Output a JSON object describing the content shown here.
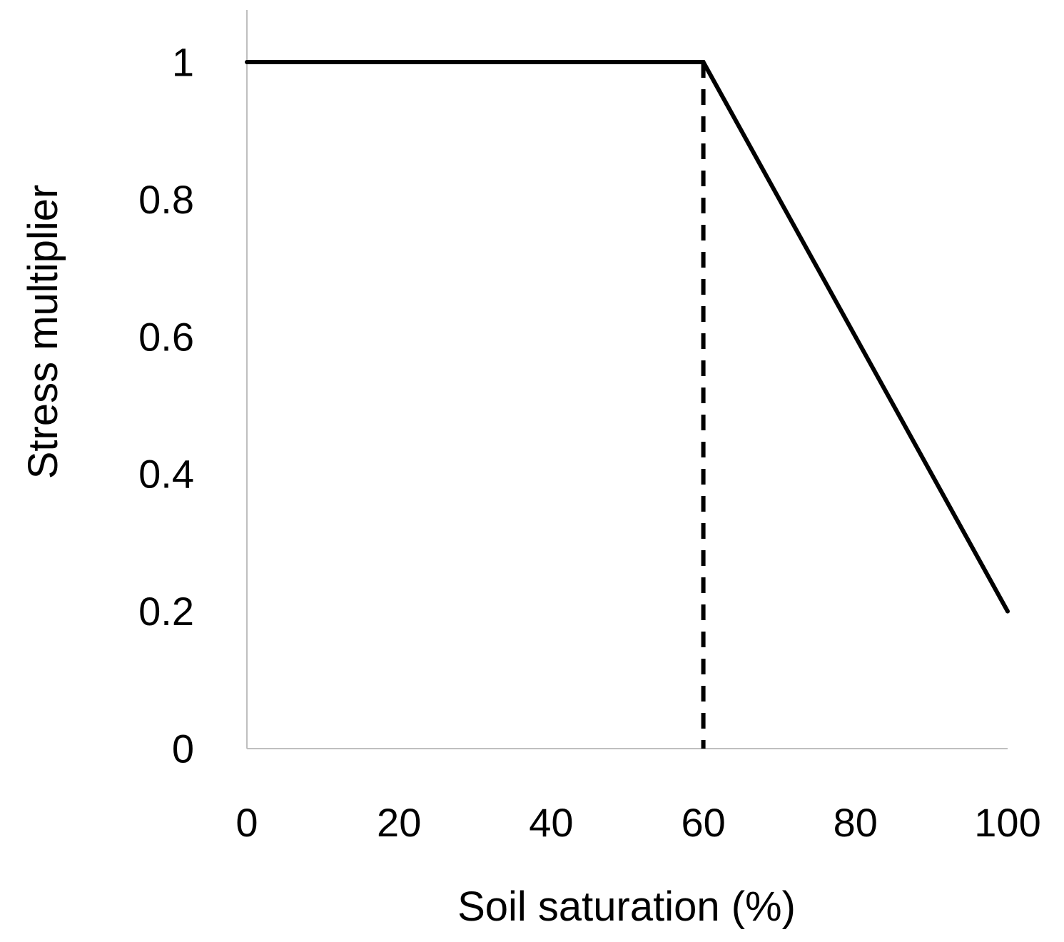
{
  "chart_data": {
    "type": "line",
    "title": "",
    "xlabel": "Soil saturation (%)",
    "ylabel": "Stress multiplier",
    "xlim": [
      0,
      100
    ],
    "ylim": [
      0,
      1
    ],
    "x_ticks": [
      0,
      20,
      40,
      60,
      80,
      100
    ],
    "x_tick_labels": [
      "0",
      "20",
      "40",
      "60",
      "80",
      "100"
    ],
    "y_ticks": [
      0,
      0.2,
      0.4,
      0.6,
      0.8,
      1
    ],
    "y_tick_labels": [
      "0",
      "0.2",
      "0.4",
      "0.6",
      "0.8",
      "1"
    ],
    "grid": false,
    "legend": "none",
    "series": [
      {
        "x": [
          0,
          60,
          100
        ],
        "y": [
          1,
          1,
          0.2
        ],
        "color": "#000000",
        "style": "solid"
      }
    ],
    "reference_lines": [
      {
        "orientation": "vertical",
        "x": 60,
        "y_from": 0,
        "y_to": 1,
        "color": "#000000",
        "style": "dashed"
      }
    ],
    "axis_color": "#bfbfbf"
  }
}
